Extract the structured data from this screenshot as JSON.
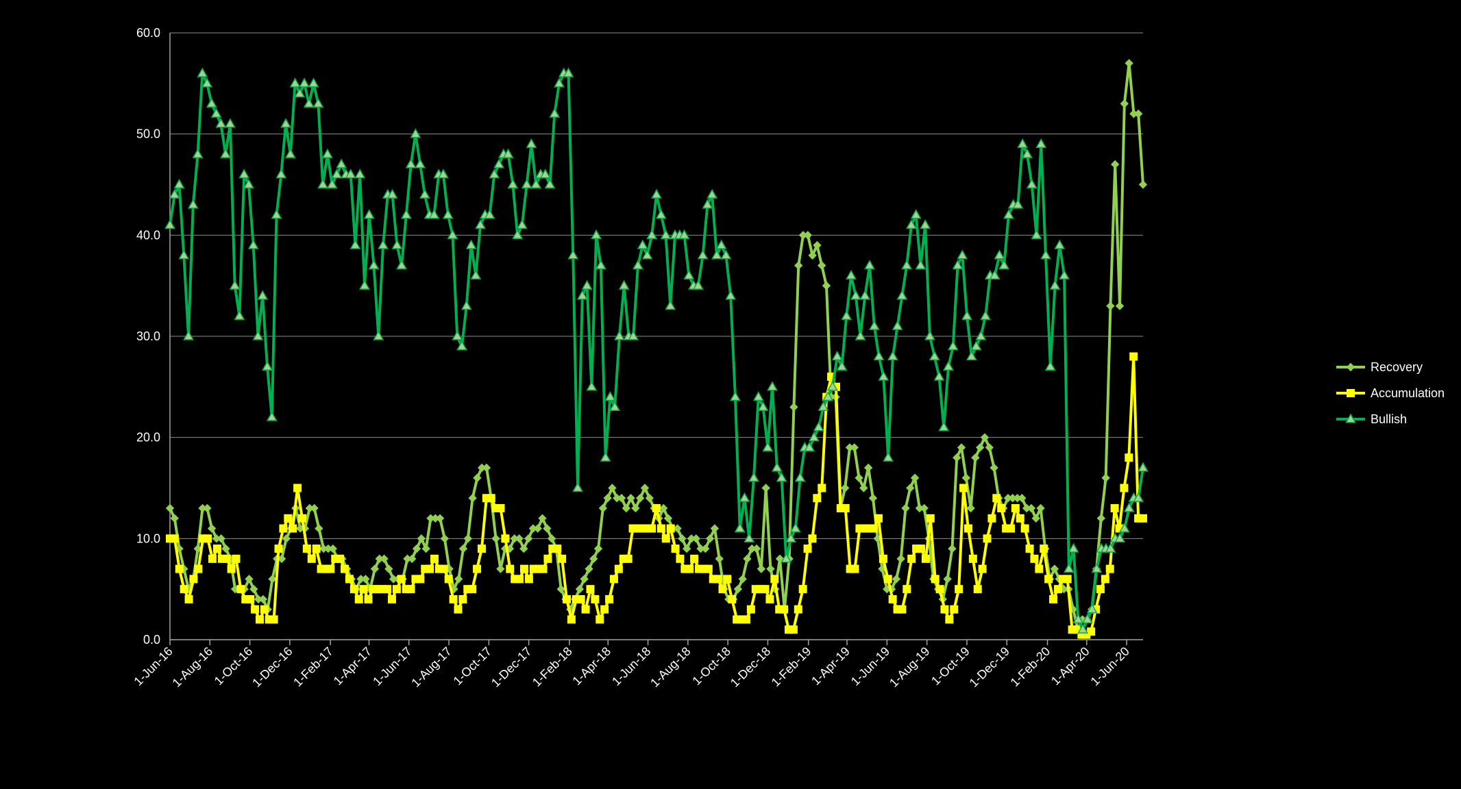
{
  "chart_data": {
    "type": "line",
    "title": "",
    "xlabel": "",
    "ylabel": "",
    "ylim": [
      0,
      60
    ],
    "y_ticks": [
      "0.0",
      "10.0",
      "20.0",
      "30.0",
      "40.0",
      "50.0",
      "60.0"
    ],
    "y_tick_values": [
      0,
      10,
      20,
      30,
      40,
      50,
      60
    ],
    "x_start": "2016-06-01",
    "x_end": "2020-06-26",
    "x_tick_labels": [
      "1-Jun-16",
      "1-Aug-16",
      "1-Oct-16",
      "1-Dec-16",
      "1-Feb-17",
      "1-Apr-17",
      "1-Jun-17",
      "1-Aug-17",
      "1-Oct-17",
      "1-Dec-17",
      "1-Feb-18",
      "1-Apr-18",
      "1-Jun-18",
      "1-Aug-18",
      "1-Oct-18",
      "1-Dec-18",
      "1-Feb-19",
      "1-Apr-19",
      "1-Jun-19",
      "1-Aug-19",
      "1-Oct-19",
      "1-Dec-19",
      "1-Feb-20",
      "1-Apr-20",
      "1-Jun-20"
    ],
    "x_tick_dates": [
      "2016-06-01",
      "2016-08-01",
      "2016-10-01",
      "2016-12-01",
      "2017-02-01",
      "2017-04-01",
      "2017-06-01",
      "2017-08-01",
      "2017-10-01",
      "2017-12-01",
      "2018-02-01",
      "2018-04-01",
      "2018-06-01",
      "2018-08-01",
      "2018-10-01",
      "2018-12-01",
      "2019-02-01",
      "2019-04-01",
      "2019-06-01",
      "2019-08-01",
      "2019-10-01",
      "2019-12-01",
      "2020-02-01",
      "2020-04-01",
      "2020-06-01"
    ],
    "grid": true,
    "legend": "right",
    "series": [
      {
        "name": "Recovery",
        "color": "#92D050",
        "marker": "diamond",
        "values": [
          13,
          12,
          9,
          7,
          5,
          6,
          9,
          13,
          13,
          11,
          10,
          10,
          9,
          8,
          5,
          5,
          5,
          6,
          5,
          4,
          4,
          3,
          6,
          8,
          8,
          10,
          11,
          13,
          11,
          11,
          13,
          13,
          11,
          9,
          9,
          9,
          8,
          8,
          7,
          6,
          5,
          6,
          6,
          5,
          7,
          8,
          8,
          7,
          6,
          6,
          6,
          8,
          8,
          9,
          10,
          9,
          12,
          12,
          12,
          10,
          7,
          5,
          6,
          9,
          10,
          14,
          16,
          17,
          17,
          14,
          10,
          7,
          9,
          9,
          10,
          10,
          9,
          10,
          11,
          11,
          12,
          11,
          10,
          9,
          5,
          4,
          3,
          4,
          5,
          6,
          7,
          8,
          9,
          13,
          14,
          15,
          14,
          14,
          13,
          14,
          13,
          14,
          15,
          14,
          13,
          12,
          13,
          12,
          11,
          11,
          10,
          9,
          10,
          10,
          9,
          9,
          10,
          11,
          8,
          5,
          4,
          4,
          5,
          6,
          8,
          9,
          9,
          7,
          15,
          7,
          5,
          8,
          3,
          8,
          23,
          37,
          40,
          40,
          38,
          39,
          37,
          35,
          24,
          24,
          13,
          15,
          19,
          19,
          16,
          15,
          17,
          14,
          10,
          7,
          5,
          5,
          6,
          8,
          13,
          15,
          16,
          13,
          13,
          10,
          6,
          5,
          4,
          6,
          9,
          18,
          19,
          16,
          13,
          18,
          19,
          20,
          19,
          17,
          14,
          13,
          14,
          14,
          14,
          14,
          13,
          13,
          12,
          13,
          9,
          6,
          7,
          6,
          5,
          5,
          3,
          1,
          2,
          2,
          3,
          7,
          12,
          16,
          33,
          47,
          33,
          53,
          57,
          52,
          52,
          45
        ]
      },
      {
        "name": "Accumulation",
        "color": "#FFFF00",
        "marker": "square",
        "values": [
          10,
          10,
          7,
          5,
          4,
          6,
          7,
          10,
          10,
          8,
          9,
          8,
          8,
          7,
          8,
          5,
          4,
          4,
          3,
          2,
          3,
          2,
          2,
          9,
          11,
          12,
          11,
          15,
          12,
          9,
          8,
          9,
          7,
          7,
          7,
          8,
          8,
          7,
          6,
          5,
          4,
          5,
          4,
          5,
          5,
          5,
          5,
          4,
          5,
          6,
          5,
          5,
          6,
          6,
          7,
          7,
          8,
          7,
          7,
          6,
          4,
          3,
          4,
          5,
          5,
          7,
          9,
          14,
          14,
          13,
          13,
          10,
          7,
          6,
          6,
          7,
          6,
          7,
          7,
          7,
          8,
          9,
          9,
          8,
          4,
          2,
          4,
          4,
          3,
          5,
          4,
          2,
          3,
          4,
          6,
          7,
          8,
          8,
          11,
          11,
          11,
          11,
          11,
          13,
          11,
          10,
          11,
          9,
          8,
          7,
          7,
          8,
          7,
          7,
          7,
          6,
          6,
          5,
          6,
          4,
          2,
          2,
          2,
          3,
          5,
          5,
          5,
          4,
          6,
          3,
          3,
          1,
          1,
          3,
          5,
          9,
          10,
          14,
          15,
          24,
          26,
          25,
          13,
          13,
          7,
          7,
          11,
          11,
          11,
          11,
          12,
          8,
          6,
          4,
          3,
          3,
          5,
          8,
          9,
          9,
          8,
          12,
          6,
          5,
          3,
          2,
          3,
          5,
          15,
          11,
          8,
          5,
          7,
          10,
          12,
          14,
          13,
          11,
          11,
          13,
          12,
          11,
          9,
          8,
          7,
          9,
          6,
          4,
          5,
          6,
          6,
          1,
          1,
          0.5,
          0.5,
          0.8,
          3,
          5,
          6,
          7,
          13,
          11,
          15,
          18,
          28,
          12,
          12
        ]
      },
      {
        "name": "Bullish",
        "color": "#00B050",
        "marker": "triangle",
        "values": [
          41,
          44,
          45,
          38,
          30,
          43,
          48,
          56,
          55,
          53,
          52,
          51,
          48,
          51,
          35,
          32,
          46,
          45,
          39,
          30,
          34,
          27,
          22,
          42,
          46,
          51,
          48,
          55,
          54,
          55,
          53,
          55,
          53,
          45,
          48,
          45,
          46,
          47,
          46,
          46,
          39,
          46,
          35,
          42,
          37,
          30,
          39,
          44,
          44,
          39,
          37,
          42,
          47,
          50,
          47,
          44,
          42,
          42,
          46,
          46,
          42,
          40,
          30,
          29,
          33,
          39,
          36,
          41,
          42,
          42,
          46,
          47,
          48,
          48,
          45,
          40,
          41,
          45,
          49,
          45,
          46,
          46,
          45,
          52,
          55,
          56,
          56,
          38,
          15,
          34,
          35,
          25,
          40,
          37,
          18,
          24,
          23,
          30,
          35,
          30,
          30,
          37,
          39,
          38,
          40,
          44,
          42,
          40,
          33,
          40,
          40,
          40,
          36,
          35,
          35,
          38,
          43,
          44,
          38,
          39,
          38,
          34,
          24,
          11,
          14,
          10,
          16,
          24,
          23,
          19,
          25,
          17,
          16,
          8,
          10,
          11,
          16,
          19,
          19,
          20,
          21,
          23,
          24,
          25,
          28,
          27,
          32,
          36,
          34,
          30,
          34,
          37,
          31,
          28,
          26,
          18,
          28,
          31,
          34,
          37,
          41,
          42,
          37,
          41,
          30,
          28,
          26,
          21,
          27,
          29,
          37,
          38,
          32,
          28,
          29,
          30,
          32,
          36,
          36,
          38,
          37,
          42,
          43,
          43,
          49,
          48,
          45,
          40,
          49,
          38,
          27,
          35,
          39,
          36,
          7,
          9,
          2,
          1,
          2,
          3,
          7,
          9,
          9,
          9,
          10,
          10,
          11,
          13,
          14,
          14,
          17
        ]
      }
    ]
  }
}
